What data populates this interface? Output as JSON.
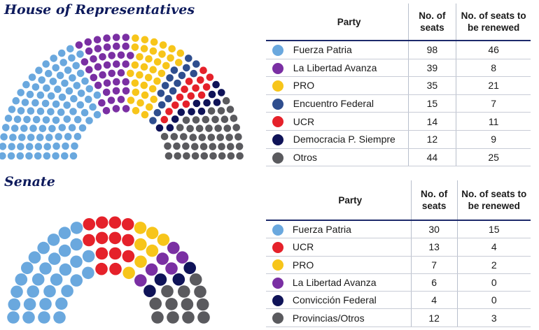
{
  "house": {
    "title": "House of Representatives",
    "headers": {
      "party": "Party",
      "seats": "No. of seats",
      "renewed": "No. of seats to be renewed"
    }
  },
  "senate": {
    "title": "Senate",
    "headers": {
      "party": "Party",
      "seats": "No. of seats",
      "renewed": "No. of seats to be renewed"
    }
  },
  "chart_data": [
    {
      "type": "table",
      "title": "House of Representatives",
      "columns": [
        "Party",
        "No. of seats",
        "No. of seats to be renewed"
      ],
      "rows": [
        {
          "party": "Fuerza Patria",
          "seats": 98,
          "renewed": 46,
          "color": "#6aa8de"
        },
        {
          "party": "La Libertad Avanza",
          "seats": 39,
          "renewed": 8,
          "color": "#7a2fa3"
        },
        {
          "party": "PRO",
          "seats": 35,
          "renewed": 21,
          "color": "#f7c51a"
        },
        {
          "party": "Encuentro Federal",
          "seats": 15,
          "renewed": 7,
          "color": "#2f4e8e"
        },
        {
          "party": "UCR",
          "seats": 14,
          "renewed": 11,
          "color": "#e5212a"
        },
        {
          "party": "Democracia P. Siempre",
          "seats": 12,
          "renewed": 9,
          "color": "#0f1358"
        },
        {
          "party": "Otros",
          "seats": 44,
          "renewed": 25,
          "color": "#5a5a5e"
        }
      ]
    },
    {
      "type": "table",
      "title": "Senate",
      "columns": [
        "Party",
        "No. of seats",
        "No. of seats to be renewed"
      ],
      "rows": [
        {
          "party": "Fuerza Patria",
          "seats": 30,
          "renewed": 15,
          "color": "#6aa8de"
        },
        {
          "party": "UCR",
          "seats": 13,
          "renewed": 4,
          "color": "#e5212a"
        },
        {
          "party": "PRO",
          "seats": 7,
          "renewed": 2,
          "color": "#f7c51a"
        },
        {
          "party": "La Libertad Avanza",
          "seats": 6,
          "renewed": 0,
          "color": "#7a2fa3"
        },
        {
          "party": "Convicción Federal",
          "seats": 4,
          "renewed": 0,
          "color": "#0f1358"
        },
        {
          "party": "Provincias/Otros",
          "seats": 12,
          "renewed": 3,
          "color": "#5a5a5e"
        }
      ]
    }
  ]
}
